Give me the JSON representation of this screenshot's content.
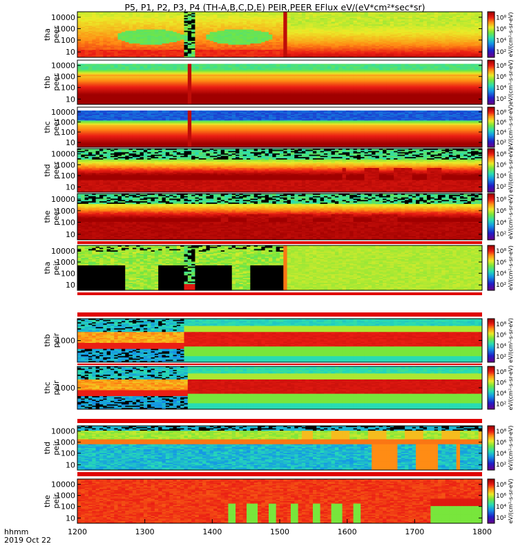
{
  "title": "P5, P1, P2, P3, P4 (TH-A,B,C,D,E) PEIR,PEER EFlux eV/(eV*cm²*sec*sr)",
  "time_label_1": "hhmm",
  "time_label_2": "2019 Oct 22",
  "chart_data": {
    "type": "heatmap",
    "x_ticks": [
      "1200",
      "1300",
      "1400",
      "1500",
      "1600",
      "1700",
      "1800"
    ],
    "x_range": [
      1200,
      1800
    ],
    "colorbar_unit": "eV/(cm²-s-sr-eV)",
    "colorbar_ticks": [
      "10²",
      "10⁴",
      "10⁶",
      "10⁸"
    ],
    "panels": [
      {
        "id": "tha-peer",
        "ylabel1": "tha",
        "ylabel2": "peer",
        "yticks": [
          "10000",
          "1000",
          "100",
          "10"
        ],
        "pattern": "tha_peer"
      },
      {
        "id": "thb-peer",
        "ylabel1": "thb",
        "ylabel2": "peer",
        "yticks": [
          "10000",
          "1000",
          "100",
          "10"
        ],
        "pattern": "thb_peer"
      },
      {
        "id": "thc-peer",
        "ylabel1": "thc",
        "ylabel2": "peer",
        "yticks": [
          "10000",
          "1000",
          "100",
          "10"
        ],
        "pattern": "thc_peer"
      },
      {
        "id": "thd-peer",
        "ylabel1": "thd",
        "ylabel2": "peer",
        "yticks": [
          "10000",
          "1000",
          "100",
          "10"
        ],
        "pattern": "thd_peer"
      },
      {
        "id": "the-peer",
        "ylabel1": "the",
        "ylabel2": "peer",
        "yticks": [
          "10000",
          "1000",
          "100",
          "10"
        ],
        "pattern": "the_peer"
      },
      {
        "id": "tha-peir",
        "ylabel1": "tha",
        "ylabel2": "peir",
        "yticks": [
          "10000",
          "1000",
          "100",
          "10"
        ],
        "pattern": "tha_peir"
      },
      {
        "id": "thb-peir",
        "ylabel1": "thb",
        "ylabel2": "peir",
        "yticks": [
          "1000"
        ],
        "pattern": "thb_peir"
      },
      {
        "id": "thc-peir",
        "ylabel1": "thc",
        "ylabel2": "peir",
        "yticks": [
          "1000"
        ],
        "pattern": "thc_peir"
      },
      {
        "id": "thd-peir",
        "ylabel1": "thd",
        "ylabel2": "peir",
        "yticks": [
          "10000",
          "1000",
          "100",
          "10"
        ],
        "pattern": "thd_peir"
      },
      {
        "id": "the-peir",
        "ylabel1": "the",
        "ylabel2": "peir",
        "yticks": [
          "10000",
          "1000",
          "100",
          "10"
        ],
        "pattern": "the_peir"
      }
    ]
  }
}
